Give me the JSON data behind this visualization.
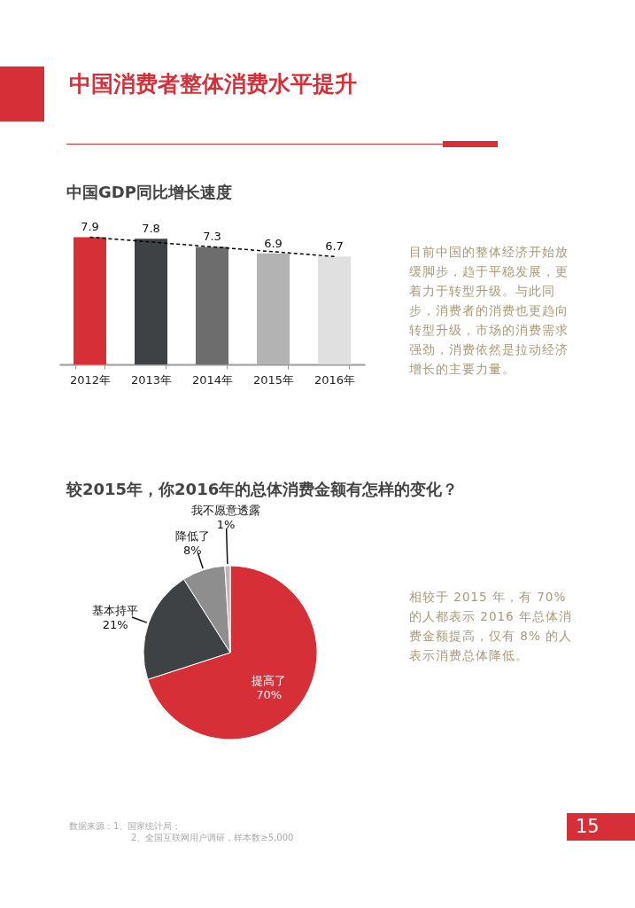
{
  "chart_data": [
    {
      "type": "bar",
      "title": "中国消费者整体消费水平提升",
      "subtitle": "中国GDP同比增长速度",
      "categories": [
        "2012年",
        "2013年",
        "2014年",
        "2015年",
        "2016年"
      ],
      "tick_labels": "x",
      "series": [
        {
          "type": "bar",
          "colors": [
            "#d72f38",
            "#3f4245",
            "#6d6d6d",
            "#b3b3b3",
            "#e0e0e0"
          ],
          "values": [
            7.9,
            7.8,
            7.3,
            6.9,
            6.7
          ],
          "value_labels": [
            "7.9",
            "7.8",
            "7.3",
            "6.9",
            "6.7"
          ]
        },
        {
          "type": "line",
          "color": "#000000",
          "line_style": "dashed",
          "x": [
            "2012年",
            "2016年"
          ],
          "values": [
            7.9,
            6.7
          ]
        }
      ],
      "annotations": [
        "目前中国的整体经济开始放缓脚步，趋于平稳发展，更着力于转型升级。与此同步，消费者的消费也更趋向转型升级，市场的消费需求强劲，消费依然是拉动经济增长的主要力量。"
      ]
    },
    {
      "type": "pie",
      "title": "较2015年，你2016年的总体消费金额有怎样的变化？",
      "categories": [
        "提高了",
        "基本持平",
        "降低了",
        "我不愿意透露"
      ],
      "values": [
        70,
        21,
        8,
        1
      ],
      "value_labels": [
        "70%",
        "21%",
        "8%",
        "1%"
      ],
      "colors": [
        "#d72f38",
        "#3f4245",
        "#8e8e8e",
        "#b8b8b8"
      ],
      "legend": false,
      "annotations": [
        "相较于 2015 年，有 70% 的人都表示 2016 年总体消费金额提高，仅有 8% 的人表示消费总体降低。",
        "数据来源：1、国家统计局；",
        "2、全国互联网用户调研，样本数≥5,000",
        "15"
      ]
    }
  ]
}
